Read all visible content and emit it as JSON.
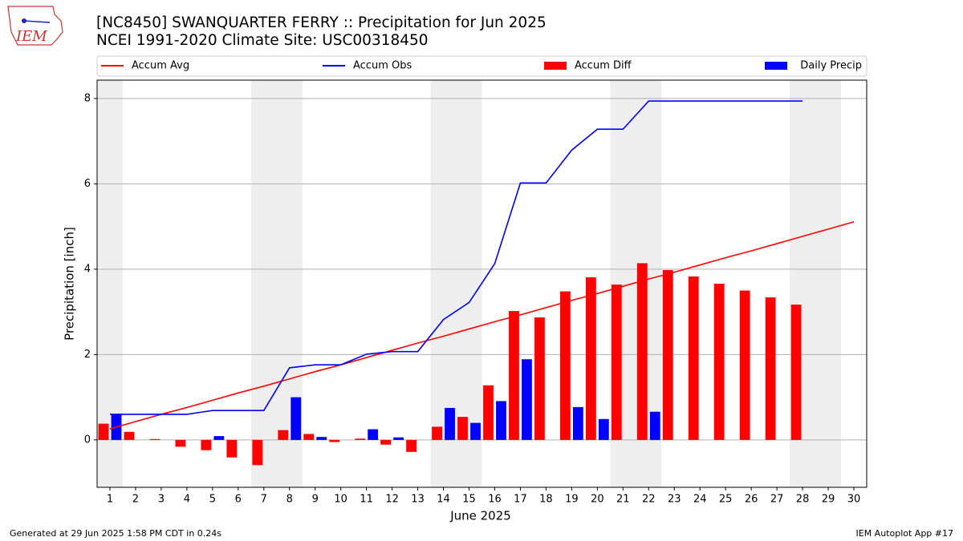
{
  "chart_data": {
    "type": "bar",
    "title": "[NC8450] SWANQUARTER FERRY :: Precipitation for Jun 2025",
    "subtitle": "NCEI 1991-2020 Climate Site: USC00318450",
    "xlabel": "June 2025",
    "ylabel": "Precipitation [inch]",
    "logo_text": "IEM",
    "footer_left": "Generated at 29 Jun 2025 1:58 PM CDT in 0.24s",
    "footer_right": "IEM Autoplot App #17",
    "x": [
      1,
      2,
      3,
      4,
      5,
      6,
      7,
      8,
      9,
      10,
      11,
      12,
      13,
      14,
      15,
      16,
      17,
      18,
      19,
      20,
      21,
      22,
      23,
      24,
      25,
      26,
      27,
      28,
      29,
      30
    ],
    "xlim": [
      0.5,
      30.5
    ],
    "xticks": [
      1,
      2,
      3,
      4,
      5,
      6,
      7,
      8,
      9,
      10,
      11,
      12,
      13,
      14,
      15,
      16,
      17,
      18,
      19,
      20,
      21,
      22,
      23,
      24,
      25,
      26,
      27,
      28,
      29,
      30
    ],
    "ylim": [
      -1.11,
      8.43
    ],
    "yticks": [
      0,
      2,
      4,
      6,
      8
    ],
    "grid": true,
    "shaded_spans": [
      [
        0.5,
        1.5
      ],
      [
        6.5,
        8.5
      ],
      [
        13.5,
        15.5
      ],
      [
        20.5,
        22.5
      ],
      [
        27.5,
        29.5
      ]
    ],
    "series": [
      {
        "name": "Accum Avg",
        "kind": "line",
        "color": "#ff0000",
        "values": [
          0.26,
          0.43,
          0.6,
          0.76,
          0.93,
          1.1,
          1.26,
          1.43,
          1.6,
          1.76,
          1.93,
          2.1,
          2.27,
          2.43,
          2.6,
          2.77,
          2.93,
          3.1,
          3.27,
          3.43,
          3.6,
          3.77,
          3.93,
          4.1,
          4.27,
          4.43,
          4.6,
          4.77,
          4.94,
          5.11
        ]
      },
      {
        "name": "Accum Obs",
        "kind": "line",
        "color": "#0000ff",
        "values": [
          0.6,
          0.6,
          0.6,
          0.6,
          0.69,
          0.69,
          0.69,
          1.69,
          1.76,
          1.76,
          2.01,
          2.07,
          2.07,
          2.82,
          3.22,
          4.13,
          6.02,
          6.02,
          6.79,
          7.28,
          7.28,
          7.94,
          7.94,
          7.94,
          7.94,
          7.94,
          7.94,
          7.94,
          null,
          null
        ]
      },
      {
        "name": "Accum Diff",
        "kind": "bar",
        "offset": -0.25,
        "color": "#ff0000",
        "values": [
          0.38,
          0.19,
          0.02,
          -0.16,
          -0.24,
          -0.41,
          -0.59,
          0.23,
          0.14,
          -0.05,
          0.03,
          -0.11,
          -0.28,
          0.31,
          0.54,
          1.28,
          3.02,
          2.87,
          3.48,
          3.81,
          3.64,
          4.14,
          3.98,
          3.83,
          3.66,
          3.5,
          3.34,
          3.17,
          null,
          null
        ]
      },
      {
        "name": "Daily Precip",
        "kind": "bar",
        "offset": 0.25,
        "color": "#0000ff",
        "values": [
          0.6,
          0,
          0,
          0,
          0.09,
          0,
          0,
          1.0,
          0.07,
          0,
          0.25,
          0.06,
          0,
          0.75,
          0.4,
          0.91,
          1.89,
          0,
          0.77,
          0.49,
          0,
          0.66,
          0,
          0,
          0,
          0,
          0,
          0,
          null,
          null
        ]
      }
    ]
  }
}
